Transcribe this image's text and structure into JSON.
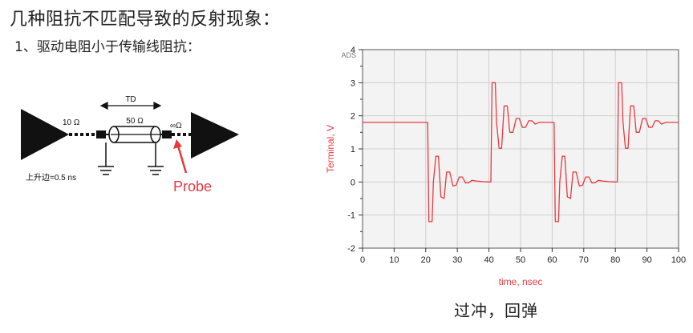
{
  "header": {
    "title": "几种阻抗不匹配导致的反射现象：",
    "subtitle": "1、驱动电阻小于传输线阻抗："
  },
  "schematic": {
    "driver_r": "10 Ω",
    "td_label": "TD",
    "line_z": "50 Ω",
    "load_r": "∞Ω",
    "rise_time": "上升边=0.5 ns",
    "probe_label": "Probe"
  },
  "caption": "过冲，回弹",
  "colors": {
    "trace": "#e8393f",
    "probe": "#e8393f",
    "plot_bg": "#f3f3f3"
  },
  "chart_data": {
    "type": "line",
    "title": "",
    "watermark": "ADS",
    "xlabel": "time, nsec",
    "ylabel": "Terminal, V",
    "xlim": [
      0,
      100
    ],
    "ylim": [
      -2,
      4
    ],
    "xticks": [
      "0",
      "10",
      "20",
      "30",
      "40",
      "50",
      "60",
      "70",
      "80",
      "90",
      "100"
    ],
    "yticks": [
      "-2",
      "-1",
      "0",
      "1",
      "2",
      "3",
      "4"
    ],
    "grid": true,
    "series": [
      {
        "values": [
          [
            0,
            1.8
          ],
          [
            20,
            1.8
          ],
          [
            20.6,
            1.8
          ],
          [
            21,
            -1.2
          ],
          [
            22,
            -1.2
          ],
          [
            22.4,
            0
          ],
          [
            23.2,
            0.78
          ],
          [
            24,
            0.78
          ],
          [
            24.8,
            -0.45
          ],
          [
            25.8,
            -0.5
          ],
          [
            26.6,
            0.3
          ],
          [
            27.6,
            0.3
          ],
          [
            28.6,
            -0.12
          ],
          [
            29.6,
            -0.1
          ],
          [
            30.6,
            0.15
          ],
          [
            31.6,
            0.15
          ],
          [
            32.6,
            -0.03
          ],
          [
            33.6,
            -0.02
          ],
          [
            34.6,
            0.05
          ],
          [
            36,
            0.03
          ],
          [
            38,
            0.01
          ],
          [
            40,
            0
          ],
          [
            40.6,
            0
          ],
          [
            41,
            3.0
          ],
          [
            42,
            3.0
          ],
          [
            42.4,
            1.8
          ],
          [
            43.2,
            1.02
          ],
          [
            44,
            1.02
          ],
          [
            44.8,
            2.3
          ],
          [
            45.8,
            2.3
          ],
          [
            46.6,
            1.5
          ],
          [
            47.6,
            1.5
          ],
          [
            48.6,
            1.92
          ],
          [
            49.6,
            1.92
          ],
          [
            50.6,
            1.65
          ],
          [
            51.6,
            1.65
          ],
          [
            52.6,
            1.85
          ],
          [
            53.6,
            1.85
          ],
          [
            54.6,
            1.75
          ],
          [
            56,
            1.8
          ],
          [
            60,
            1.8
          ],
          [
            60.6,
            1.8
          ],
          [
            61,
            -1.2
          ],
          [
            62,
            -1.2
          ],
          [
            62.4,
            0
          ],
          [
            63.2,
            0.78
          ],
          [
            64,
            0.78
          ],
          [
            64.8,
            -0.45
          ],
          [
            65.8,
            -0.5
          ],
          [
            66.6,
            0.3
          ],
          [
            67.6,
            0.3
          ],
          [
            68.6,
            -0.12
          ],
          [
            69.6,
            -0.1
          ],
          [
            70.6,
            0.15
          ],
          [
            71.6,
            0.15
          ],
          [
            72.6,
            -0.03
          ],
          [
            73.6,
            -0.02
          ],
          [
            74.6,
            0.05
          ],
          [
            76,
            0.03
          ],
          [
            78,
            0.01
          ],
          [
            80,
            0
          ],
          [
            80.6,
            0
          ],
          [
            81,
            3.0
          ],
          [
            82,
            3.0
          ],
          [
            82.4,
            1.8
          ],
          [
            83.2,
            1.02
          ],
          [
            84,
            1.02
          ],
          [
            84.8,
            2.3
          ],
          [
            85.8,
            2.3
          ],
          [
            86.6,
            1.5
          ],
          [
            87.6,
            1.5
          ],
          [
            88.6,
            1.92
          ],
          [
            89.6,
            1.92
          ],
          [
            90.6,
            1.65
          ],
          [
            91.6,
            1.65
          ],
          [
            92.6,
            1.85
          ],
          [
            93.6,
            1.85
          ],
          [
            94.6,
            1.75
          ],
          [
            96,
            1.8
          ],
          [
            100,
            1.8
          ]
        ]
      }
    ]
  }
}
